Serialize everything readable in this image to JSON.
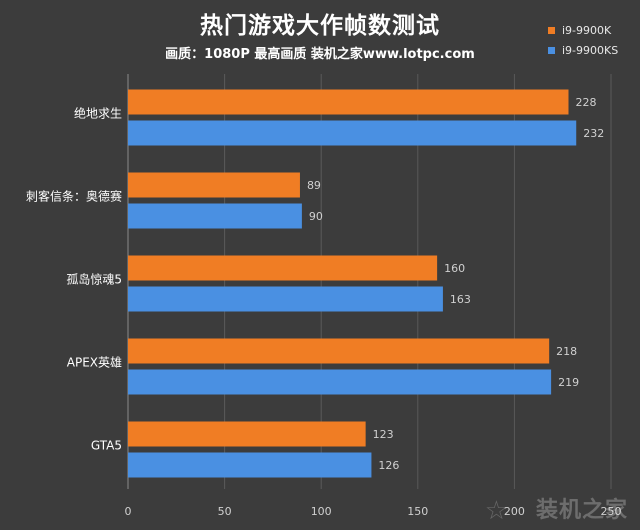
{
  "chart_data": {
    "type": "bar",
    "orientation": "horizontal",
    "title": "热门游戏大作帧数测试",
    "subtitle": "画质：1080P 最高画质 装机之家www.lotpc.com",
    "categories": [
      "绝地求生",
      "刺客信条：奥德赛",
      "孤岛惊魂5",
      "APEX英雄",
      "GTA5"
    ],
    "series": [
      {
        "name": "i9-9900K",
        "color": "#f07d24",
        "values": [
          228,
          89,
          160,
          218,
          123
        ]
      },
      {
        "name": "i9-9900KS",
        "color": "#4a90e2",
        "values": [
          232,
          90,
          163,
          219,
          126
        ]
      }
    ],
    "xlim": [
      0,
      250
    ],
    "xticks": [
      0,
      50,
      100,
      150,
      200,
      250
    ],
    "xlabel": "",
    "ylabel": "",
    "grid": true,
    "legend": "top-right"
  },
  "style": {
    "background": "#3c3c3c",
    "grid_color": "#5a5a5a",
    "axis_color": "#8a8a8a",
    "label_color": "#ffffff",
    "tick_color": "#d0d0d0"
  },
  "watermark": {
    "icon": "star-logo-icon",
    "text": "装机之家"
  }
}
